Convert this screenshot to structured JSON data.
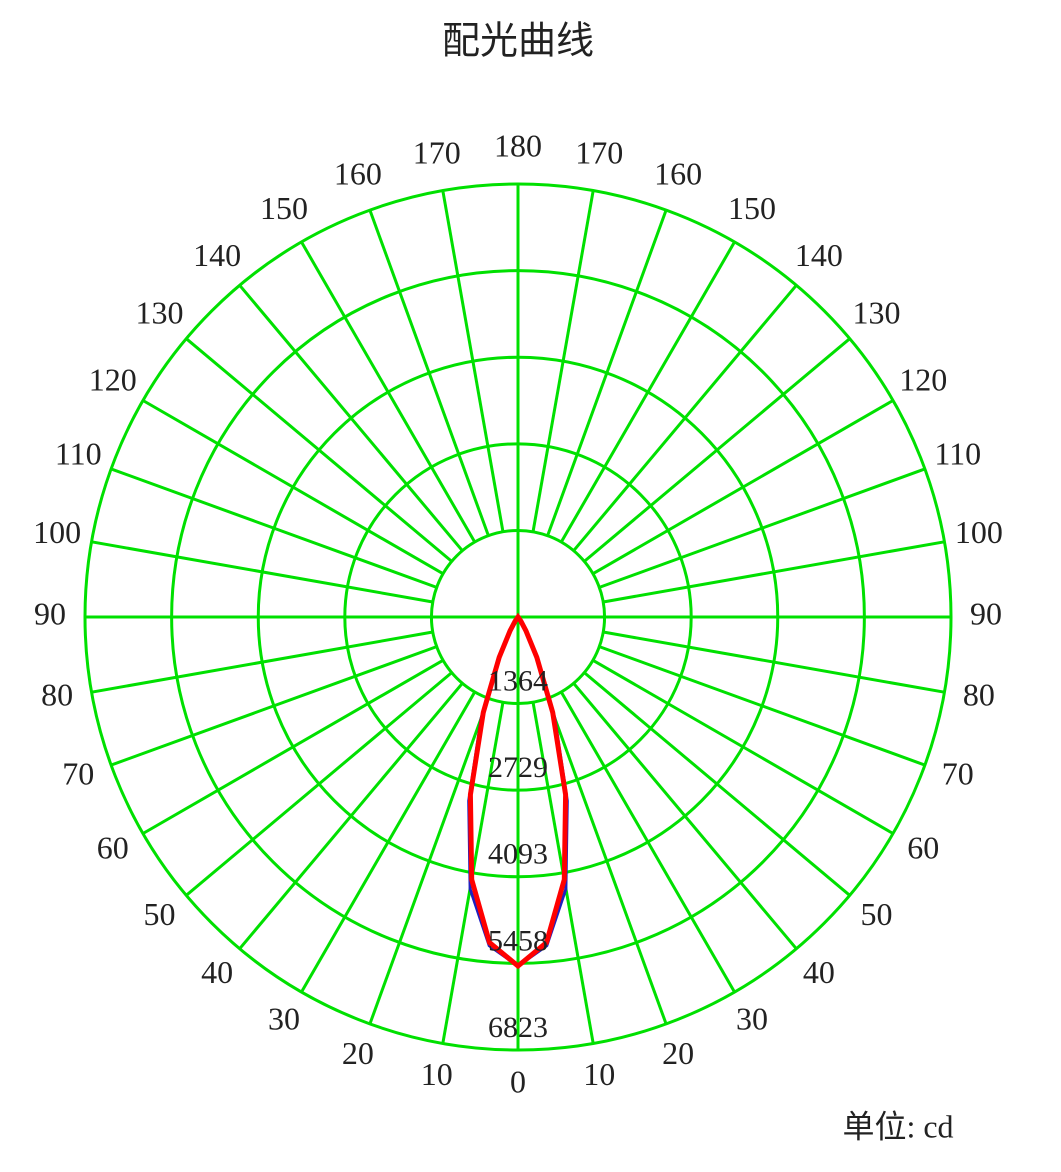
{
  "chart_data": {
    "type": "polar",
    "title": "配光曲线",
    "unit_label": "单位: cd",
    "theta": [
      -60,
      -55,
      -50,
      -45,
      -40,
      -35,
      -30,
      -25,
      -20,
      -15,
      -10,
      -5,
      0,
      5,
      10,
      15,
      20,
      25,
      30,
      35,
      40,
      45,
      50,
      55,
      60
    ],
    "series": [
      {
        "color": "#2020c0",
        "values": [
          0,
          0,
          0,
          0,
          0,
          90,
          280,
          760,
          1700,
          3000,
          4350,
          5200,
          5500,
          5200,
          4350,
          3000,
          1700,
          760,
          280,
          90,
          0,
          0,
          0,
          0,
          0
        ]
      },
      {
        "color": "#ff0000",
        "values": [
          0,
          0,
          0,
          0,
          0,
          80,
          250,
          700,
          1600,
          2900,
          4200,
          5150,
          5500,
          5150,
          4200,
          2900,
          1600,
          700,
          250,
          80,
          0,
          0,
          0,
          0,
          0
        ]
      }
    ],
    "rlim": [
      0,
      6823
    ],
    "rticks": [
      1364,
      2729,
      4093,
      5458,
      6823
    ],
    "angle_ticks": [
      0,
      10,
      20,
      30,
      40,
      50,
      60,
      70,
      80,
      90,
      100,
      110,
      120,
      130,
      140,
      150,
      160,
      170,
      180
    ],
    "grid_color": "#00e000",
    "grid": true
  }
}
